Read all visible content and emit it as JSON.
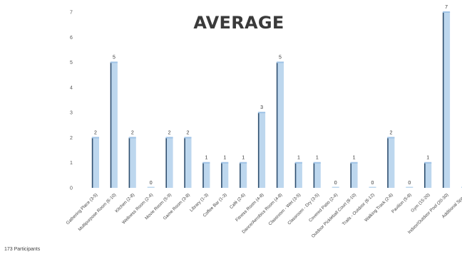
{
  "chart_data": {
    "type": "bar",
    "title": "AVERAGE",
    "categories": [
      "Gathering Place (3-5)",
      "Multipurpose Room (6-10)",
      "Kitchen (2-8)",
      "Wellness Room (2-4)",
      "Movie Room (5-9)",
      "Game Room (3-8)",
      "Library (1-3)",
      "Coffee Bar (1-3)",
      "Café (2-6)",
      "Fitness Room (4-8)",
      "Dance/Aerobics Room (4-8)",
      "Classroom - Wet (3-5)",
      "Classroom - Dry (3-5)",
      "Covered Patio (2-4)",
      "Outdoor Pickleball Court (8-10)",
      "Trails - Outdoor (8-12)",
      "Walking Track (2-6)",
      "Pavilion (5-8)",
      "Gym (15-20)",
      "Indoor/Outdoor Pool (20-30)",
      "Additional Space"
    ],
    "values": [
      2,
      5,
      2,
      0,
      2,
      2,
      1,
      1,
      1,
      3,
      5,
      1,
      1,
      0,
      1,
      0,
      2,
      0,
      1,
      7,
      0
    ],
    "ylim": [
      0,
      7
    ],
    "yticks": [
      "0",
      "1",
      "2",
      "3",
      "4",
      "5",
      "6",
      "7"
    ],
    "xlabel": "",
    "ylabel": "",
    "grid": false,
    "bar_color": "#bdd7ee",
    "bar_edge_color": "#2f4f6f"
  },
  "footnote": "173 Participants"
}
